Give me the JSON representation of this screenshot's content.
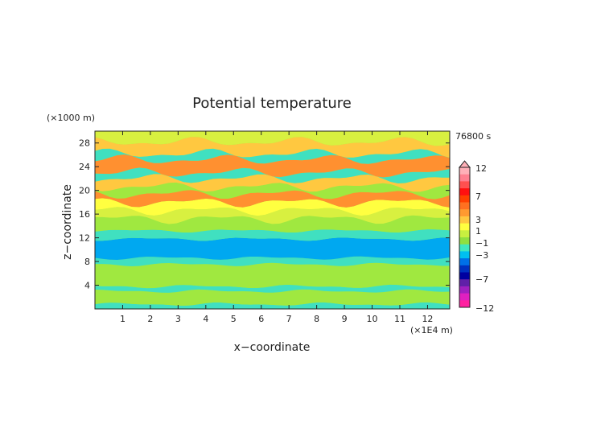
{
  "chart_data": {
    "type": "heatmap",
    "title": "Potential temperature",
    "xlabel": "x−coordinate",
    "ylabel": "z−coordinate",
    "x_unit": "(×1E4 m)",
    "y_unit": "(×1000 m)",
    "time_label": "76800 s",
    "x_ticks": [
      "1",
      "2",
      "3",
      "4",
      "5",
      "6",
      "7",
      "8",
      "9",
      "10",
      "11",
      "12"
    ],
    "y_ticks": [
      "4",
      "8",
      "12",
      "16",
      "20",
      "24",
      "28"
    ],
    "xlim": [
      0,
      12.8
    ],
    "ylim": [
      0,
      30
    ],
    "colorbar_labels": [
      "12",
      "7",
      "3",
      "1",
      "−1",
      "−3",
      "−7",
      "−12"
    ],
    "colorbar_colors": [
      "#ffb0b8",
      "#ff8090",
      "#ff5050",
      "#ff1010",
      "#ff4000",
      "#ff7020",
      "#ff9a30",
      "#ffc840",
      "#ffff40",
      "#c8f040",
      "#90e040",
      "#40e8c0",
      "#00c0f0",
      "#0070e8",
      "#0030c0",
      "#0000a0",
      "#6020a8",
      "#a020c0",
      "#e020c0",
      "#ff20a0"
    ],
    "bands": [
      {
        "z0": 0.0,
        "z1": 0.8,
        "value": -1.5
      },
      {
        "z0": 0.8,
        "z1": 3.0,
        "value": -1.0
      },
      {
        "z0": 3.0,
        "z1": 3.8,
        "value": -1.8
      },
      {
        "z0": 3.8,
        "z1": 7.5,
        "value": -1.0
      },
      {
        "z0": 7.5,
        "z1": 8.6,
        "value": -2.0
      },
      {
        "z0": 8.6,
        "z1": 11.8,
        "value": -3.0
      },
      {
        "z0": 11.8,
        "z1": 13.2,
        "value": -1.8
      },
      {
        "z0": 13.2,
        "z1": 15.2,
        "value": -1.0
      },
      {
        "z0": 15.2,
        "z1": 16.6,
        "value": 0.5
      },
      {
        "z0": 16.6,
        "z1": 18.0,
        "value": 1.5
      },
      {
        "z0": 18.0,
        "z1": 19.4,
        "value": 3.0
      },
      {
        "z0": 19.4,
        "z1": 20.6,
        "value": -0.5
      },
      {
        "z0": 20.6,
        "z1": 22.0,
        "value": 2.0
      },
      {
        "z0": 22.0,
        "z1": 23.0,
        "value": -1.5
      },
      {
        "z0": 23.0,
        "z1": 25.2,
        "value": 3.0
      },
      {
        "z0": 25.2,
        "z1": 26.2,
        "value": -2.0
      },
      {
        "z0": 26.2,
        "z1": 28.2,
        "value": 2.0
      },
      {
        "z0": 28.2,
        "z1": 30.0,
        "value": 0.5
      }
    ]
  }
}
